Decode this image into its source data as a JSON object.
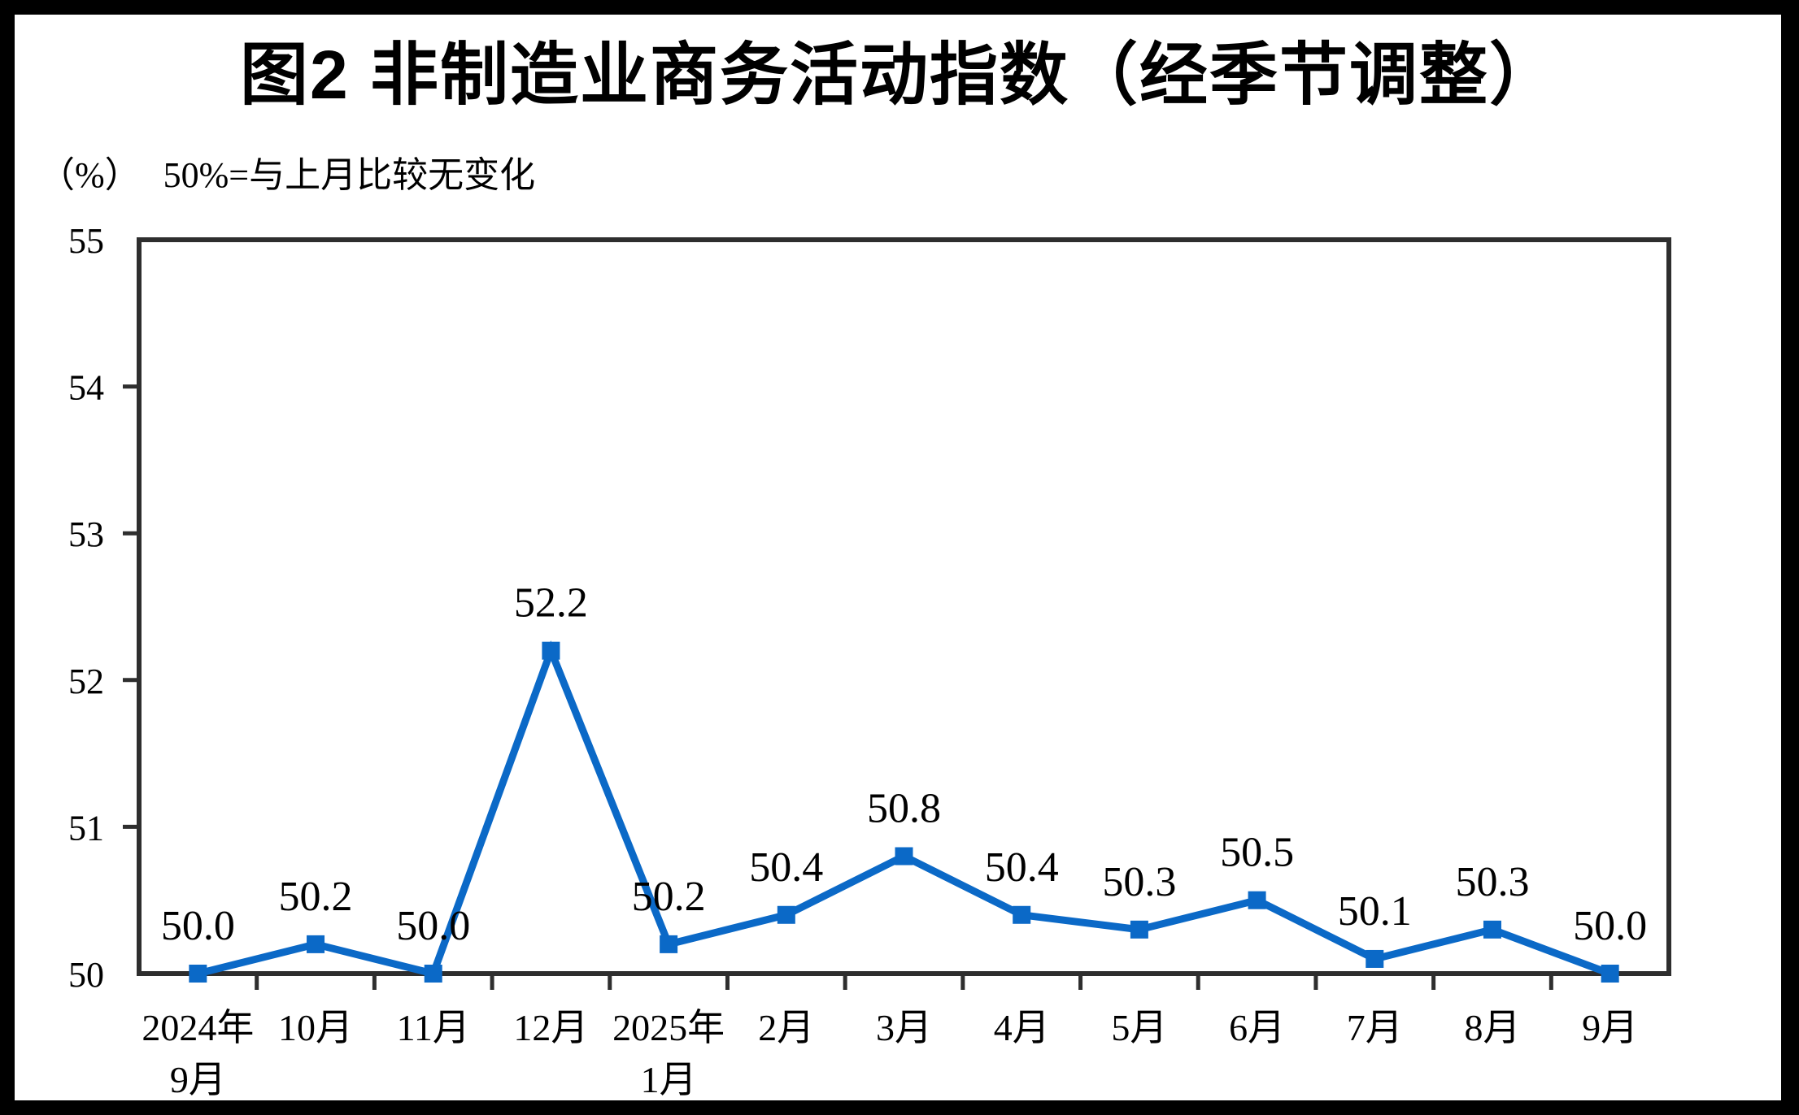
{
  "title": "图2 非制造业商务活动指数（经季节调整）",
  "subtitle": {
    "unit": "（%）",
    "note": "50%=与上月比较无变化"
  },
  "chart_data": {
    "type": "line",
    "title": "图2 非制造业商务活动指数（经季节调整）",
    "unit_label": "（%）",
    "annotation": "50%=与上月比较无变化",
    "categories": [
      [
        "2024年",
        "9月"
      ],
      [
        "10月"
      ],
      [
        "11月"
      ],
      [
        "12月"
      ],
      [
        "2025年",
        "1月"
      ],
      [
        "2月"
      ],
      [
        "3月"
      ],
      [
        "4月"
      ],
      [
        "5月"
      ],
      [
        "6月"
      ],
      [
        "7月"
      ],
      [
        "8月"
      ],
      [
        "9月"
      ]
    ],
    "values": [
      50.0,
      50.2,
      50.0,
      52.2,
      50.2,
      50.4,
      50.8,
      50.4,
      50.3,
      50.5,
      50.1,
      50.3,
      50.0
    ],
    "data_labels": [
      "50.0",
      "50.2",
      "50.0",
      "52.2",
      "50.2",
      "50.4",
      "50.8",
      "50.4",
      "50.3",
      "50.5",
      "50.1",
      "50.3",
      "50.0"
    ],
    "ylim": [
      50,
      55
    ],
    "y_ticks": [
      50,
      51,
      52,
      53,
      54,
      55
    ],
    "grid": false,
    "legend": "none",
    "marker": "square",
    "line_color": "#0b69c7",
    "axis_color": "#2e2e2e"
  }
}
